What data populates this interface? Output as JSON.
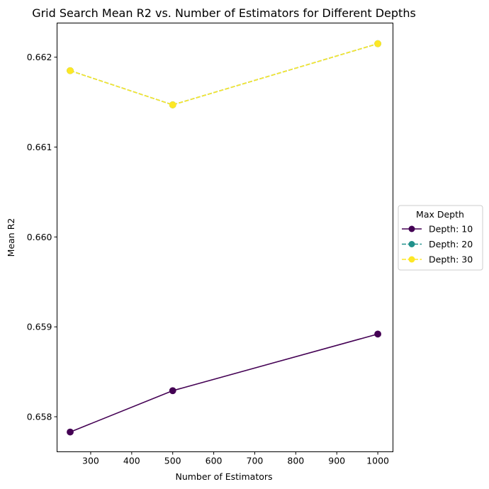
{
  "chart_data": {
    "type": "line",
    "title": "Grid Search Mean R2 vs. Number of Estimators for Different Depths",
    "xlabel": "Number of Estimators",
    "ylabel": "Mean R2",
    "xlim": [
      218,
      1037
    ],
    "ylim": [
      0.65761,
      0.66238
    ],
    "xticks": [
      300,
      400,
      500,
      600,
      700,
      800,
      900,
      1000
    ],
    "yticks": [
      0.658,
      0.659,
      0.66,
      0.661,
      0.662
    ],
    "x": [
      250,
      500,
      1000
    ],
    "series": [
      {
        "name": "Depth: 10",
        "color": "#440154",
        "linestyle": "solid",
        "marker": "circle",
        "values": [
          0.65783,
          0.65829,
          0.65892
        ]
      },
      {
        "name": "Depth: 20",
        "color": "#21918c",
        "linestyle": "dashed",
        "marker": "circle",
        "values": [
          0.66185,
          0.66147,
          0.66215
        ]
      },
      {
        "name": "Depth: 30",
        "color": "#fde725",
        "linestyle": "dashed",
        "marker": "circle",
        "values": [
          0.66185,
          0.66147,
          0.66215
        ]
      }
    ],
    "legend": {
      "title": "Max Depth",
      "placement": "center-right outside"
    },
    "grid": false
  }
}
